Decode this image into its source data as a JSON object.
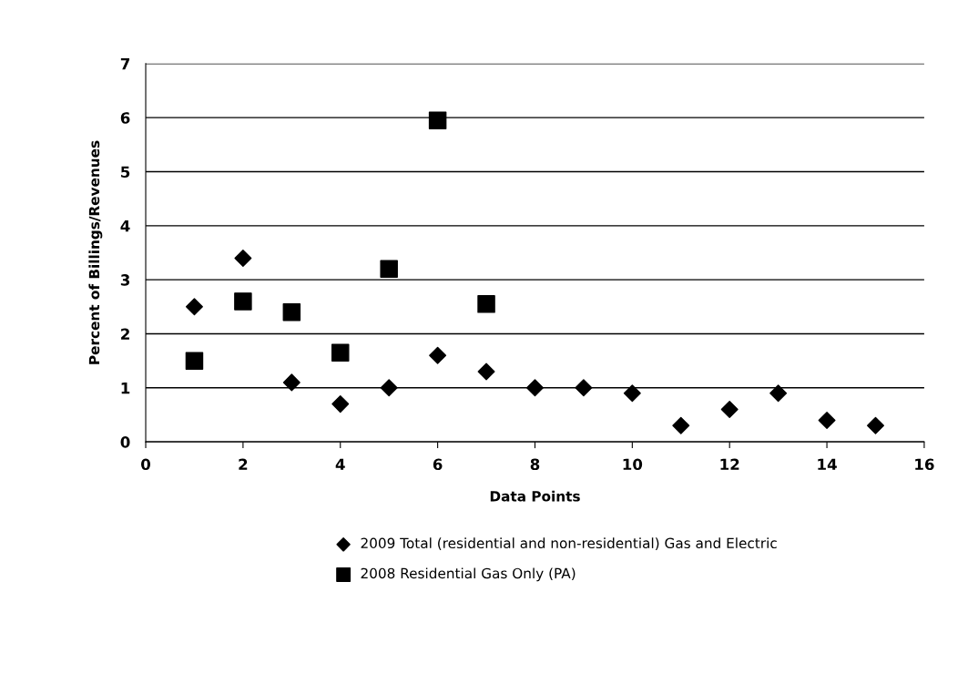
{
  "chart_data": {
    "type": "scatter",
    "xlabel": "Data Points",
    "ylabel": "Percent of Billings/Revenues",
    "xlim": [
      0,
      16
    ],
    "xticks": [
      0,
      2,
      4,
      6,
      8,
      10,
      12,
      14,
      16
    ],
    "ylim": [
      0,
      7
    ],
    "yticks": [
      0,
      1,
      2,
      3,
      4,
      5,
      6,
      7
    ],
    "grid": "y",
    "legend": "bottom",
    "series": [
      {
        "name": "2009 Total (residential and non-residential) Gas and Electric",
        "color": "#000000",
        "marker": "diamond",
        "x": [
          1,
          2,
          3,
          4,
          5,
          6,
          7,
          8,
          9,
          10,
          11,
          12,
          13,
          14,
          15
        ],
        "values": [
          2.5,
          3.4,
          1.1,
          0.7,
          1.0,
          1.6,
          1.3,
          1.0,
          1.0,
          0.9,
          0.3,
          0.6,
          0.9,
          0.4,
          0.3
        ]
      },
      {
        "name": "2008 Residential Gas Only (PA)",
        "color": "#000000",
        "marker": "square",
        "x": [
          1,
          2,
          3,
          4,
          5,
          6,
          7
        ],
        "values": [
          1.5,
          2.6,
          2.4,
          1.65,
          3.2,
          5.95,
          2.55
        ]
      }
    ]
  }
}
